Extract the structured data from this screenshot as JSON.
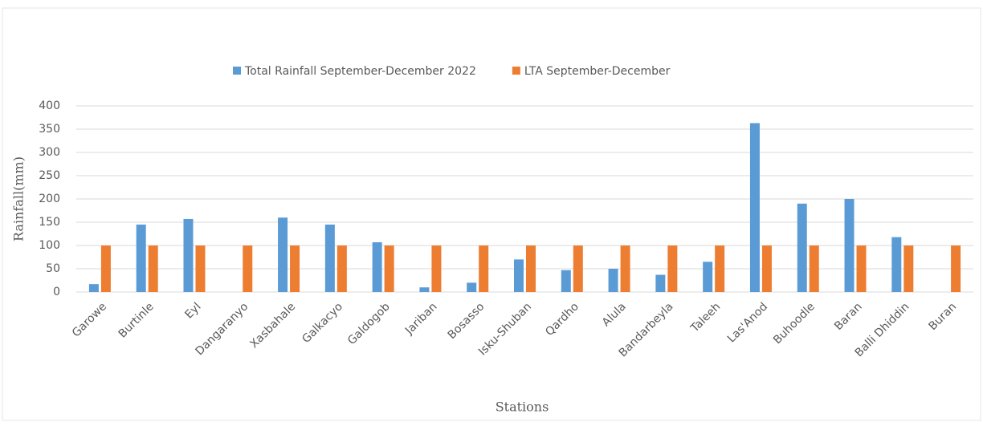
{
  "chart_data": {
    "type": "bar",
    "categories": [
      "Garowe",
      "Burtinle",
      "Eyl",
      "Dangaranyo",
      "Xasbahale",
      "Galkacyo",
      "Galdogob",
      "Jariban",
      "Bosasso",
      "Isku-Shuban",
      "Qardho",
      "Alula",
      "Bandarbeyla",
      "Taleeh",
      "Las'Anod",
      "Buhoodle",
      "Baran",
      "Balli Dhiddin",
      "Buran"
    ],
    "series": [
      {
        "name": "Total Rainfall September-December 2022",
        "color": "#5b9bd5",
        "values": [
          17,
          145,
          157,
          0,
          160,
          145,
          107,
          10,
          20,
          70,
          47,
          50,
          37,
          65,
          363,
          190,
          200,
          118,
          0
        ]
      },
      {
        "name": "LTA September-December",
        "color": "#ed7d31",
        "values": [
          100,
          100,
          100,
          100,
          100,
          100,
          100,
          100,
          100,
          100,
          100,
          100,
          100,
          100,
          100,
          100,
          100,
          100,
          100
        ]
      }
    ],
    "ylim": [
      0,
      400
    ],
    "yticks": [
      0,
      50,
      100,
      150,
      200,
      250,
      300,
      350,
      400
    ],
    "y_label": "Rainfall(mm)",
    "x_label": "Stations",
    "grid": true,
    "legend": "top"
  }
}
